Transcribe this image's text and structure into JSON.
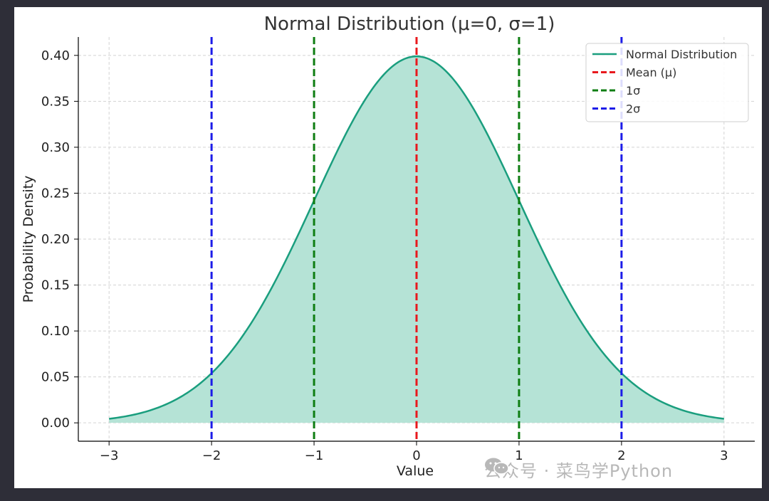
{
  "chart_data": {
    "type": "line",
    "title": "Normal Distribution (μ=0, σ=1)",
    "xlabel": "Value",
    "ylabel": "Probability Density",
    "xlim": [
      -3.3,
      3.3
    ],
    "ylim": [
      -0.02,
      0.42
    ],
    "x_ticks": [
      -3,
      -2,
      -1,
      0,
      1,
      2,
      3
    ],
    "x_tick_labels": [
      "−3",
      "−2",
      "−1",
      "0",
      "1",
      "2",
      "3"
    ],
    "y_ticks": [
      0.0,
      0.05,
      0.1,
      0.15,
      0.2,
      0.25,
      0.3,
      0.35,
      0.4
    ],
    "y_tick_labels": [
      "0.00",
      "0.05",
      "0.10",
      "0.15",
      "0.20",
      "0.25",
      "0.30",
      "0.35",
      "0.40"
    ],
    "grid": true,
    "legend_position": "top-right",
    "series": [
      {
        "name": "Normal Distribution",
        "color": "#1a9e7e",
        "fill_color": "#b5e3d6",
        "x": [
          -3.0,
          -2.75,
          -2.5,
          -2.25,
          -2.0,
          -1.75,
          -1.5,
          -1.25,
          -1.0,
          -0.75,
          -0.5,
          -0.25,
          0.0,
          0.25,
          0.5,
          0.75,
          1.0,
          1.25,
          1.5,
          1.75,
          2.0,
          2.25,
          2.5,
          2.75,
          3.0
        ],
        "y": [
          0.0044,
          0.0091,
          0.0175,
          0.0317,
          0.054,
          0.0863,
          0.1295,
          0.1826,
          0.242,
          0.3011,
          0.3521,
          0.3867,
          0.3989,
          0.3867,
          0.3521,
          0.3011,
          0.242,
          0.1826,
          0.1295,
          0.0863,
          0.054,
          0.0317,
          0.0175,
          0.0091,
          0.0044
        ]
      }
    ],
    "reference_lines": [
      {
        "name": "Mean (μ)",
        "color": "#e8191d",
        "x": [
          0
        ]
      },
      {
        "name": "1σ",
        "color": "#0e7d12",
        "x": [
          -1,
          1
        ]
      },
      {
        "name": "2σ",
        "color": "#1c1ce8",
        "x": [
          -2,
          2
        ]
      }
    ]
  },
  "watermark": {
    "text": "公众号 · 菜鸟学Python",
    "icon": "wechat-icon"
  }
}
